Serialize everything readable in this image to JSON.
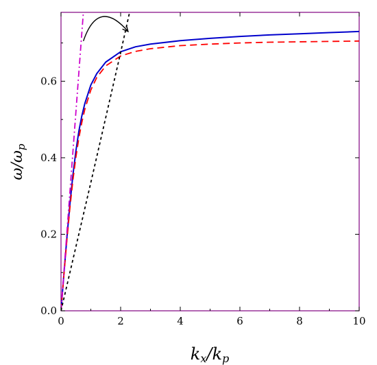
{
  "chart_data": {
    "type": "line",
    "xlabel": {
      "main": "k",
      "sub": "x",
      "sep": "/",
      "main2": "k",
      "sub2": "p"
    },
    "ylabel": {
      "main": "ω/ω",
      "sub": "p"
    },
    "xlim": [
      0,
      10
    ],
    "ylim": [
      0,
      0.78
    ],
    "x_ticks": [
      {
        "value": 0,
        "label": "0"
      },
      {
        "value": 2,
        "label": "2"
      },
      {
        "value": 4,
        "label": "4"
      },
      {
        "value": 6,
        "label": "6"
      },
      {
        "value": 8,
        "label": "8"
      },
      {
        "value": 10,
        "label": "10"
      }
    ],
    "y_ticks": [
      {
        "value": 0.0,
        "label": "0.0"
      },
      {
        "value": 0.2,
        "label": "0.2"
      },
      {
        "value": 0.4,
        "label": "0.4"
      },
      {
        "value": 0.6,
        "label": "0.6"
      }
    ],
    "grid": false,
    "frame_color": "#800080",
    "series": [
      {
        "style": "solid",
        "color": "#0000cc",
        "x": [
          0,
          0.1,
          0.2,
          0.3,
          0.4,
          0.5,
          0.6,
          0.7,
          0.8,
          1.0,
          1.2,
          1.5,
          2.0,
          2.5,
          3.0,
          4.0,
          5.0,
          6.0,
          7.0,
          8.0,
          9.0,
          10.0
        ],
        "y": [
          0,
          0.099,
          0.193,
          0.28,
          0.355,
          0.418,
          0.47,
          0.51,
          0.542,
          0.59,
          0.62,
          0.65,
          0.677,
          0.69,
          0.697,
          0.706,
          0.712,
          0.717,
          0.721,
          0.724,
          0.727,
          0.73
        ]
      },
      {
        "style": "dashed",
        "color": "#ff0000",
        "x": [
          0,
          0.1,
          0.2,
          0.3,
          0.4,
          0.5,
          0.6,
          0.7,
          0.8,
          1.0,
          1.2,
          1.5,
          2.0,
          2.5,
          3.0,
          4.0,
          5.0,
          6.0,
          7.0,
          8.0,
          9.0,
          10.0
        ],
        "y": [
          0,
          0.097,
          0.187,
          0.27,
          0.342,
          0.402,
          0.452,
          0.493,
          0.527,
          0.577,
          0.61,
          0.64,
          0.666,
          0.678,
          0.685,
          0.693,
          0.697,
          0.7,
          0.702,
          0.703,
          0.704,
          0.705
        ]
      },
      {
        "style": "dashdot",
        "color": "#cc00cc",
        "x": [
          0,
          0.5,
          0.75
        ],
        "y": [
          0,
          0.52,
          0.78
        ]
      },
      {
        "style": "dotted",
        "color": "#000000",
        "x": [
          0,
          1.0,
          2.0,
          2.3
        ],
        "y": [
          0,
          0.335,
          0.675,
          0.78
        ]
      }
    ],
    "annotations": [
      {
        "type": "curved-arrow",
        "from": [
          0.75,
          0.705
        ],
        "to": [
          2.25,
          0.73
        ],
        "via": [
          1.25,
          0.78
        ]
      }
    ]
  }
}
